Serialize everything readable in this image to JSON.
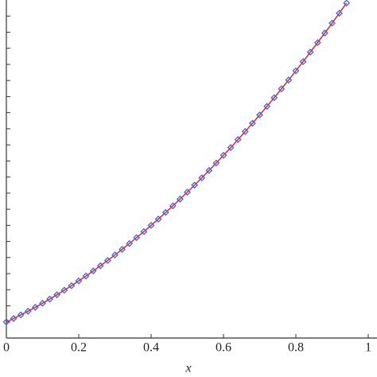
{
  "chart_data": {
    "type": "line",
    "x_label": "x",
    "x": [
      0,
      0.02,
      0.04,
      0.06,
      0.08,
      0.1,
      0.12,
      0.14,
      0.16,
      0.18,
      0.2,
      0.22,
      0.24,
      0.26,
      0.28,
      0.3,
      0.32,
      0.34,
      0.36,
      0.38,
      0.4,
      0.42,
      0.44,
      0.46,
      0.48,
      0.5,
      0.52,
      0.54,
      0.56,
      0.58,
      0.6,
      0.62,
      0.64,
      0.66,
      0.68,
      0.7,
      0.72,
      0.74,
      0.76,
      0.78,
      0.8,
      0.82,
      0.84,
      0.86,
      0.88,
      0.9,
      0.92,
      0.94
    ],
    "series": [
      {
        "color": "#d9262b",
        "marker": "diamond",
        "marker_color": "#4a5fd0",
        "values": [
          1,
          1.21,
          1.44,
          1.67,
          1.91,
          2.16,
          2.42,
          2.69,
          2.97,
          3.25,
          3.55,
          3.85,
          4.17,
          4.49,
          4.82,
          5.16,
          5.51,
          5.87,
          6.24,
          6.61,
          7.0,
          7.39,
          7.8,
          8.21,
          8.63,
          9.06,
          9.5,
          9.95,
          10.41,
          10.87,
          11.35,
          11.83,
          12.33,
          12.83,
          13.34,
          13.86,
          14.39,
          14.93,
          15.48,
          16.03,
          16.6,
          17.17,
          17.76,
          18.35,
          18.95,
          19.56,
          20.18,
          20.81
        ]
      }
    ],
    "xlim": [
      0,
      1
    ],
    "xticks": [
      0,
      0.2,
      0.4,
      0.6,
      0.8,
      1
    ],
    "ylim": [
      0,
      21
    ],
    "yticks": [
      1,
      2,
      3,
      4,
      5,
      6,
      7,
      8,
      9,
      10,
      11,
      12,
      13,
      14,
      15,
      16,
      17,
      18,
      19,
      20
    ]
  }
}
